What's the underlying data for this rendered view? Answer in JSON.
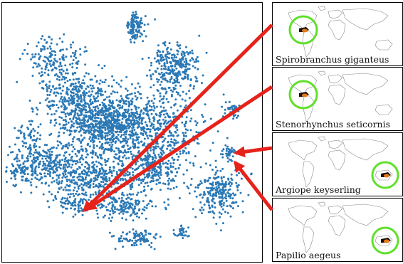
{
  "species": [
    {
      "name": "Spirobranchus giganteus",
      "region": "americas"
    },
    {
      "name": "Stenorhynchus seticornis",
      "region": "americas"
    },
    {
      "name": "Argiope keyserling",
      "region": "australia"
    },
    {
      "name": "Papilio aegeus",
      "region": "australia"
    }
  ],
  "colors": {
    "points": "#2a78b5",
    "arrows": "#e5231b",
    "highlight_circle": "#5fe02a",
    "frame": "#000000",
    "map_lines": "#8a8a8a"
  }
}
